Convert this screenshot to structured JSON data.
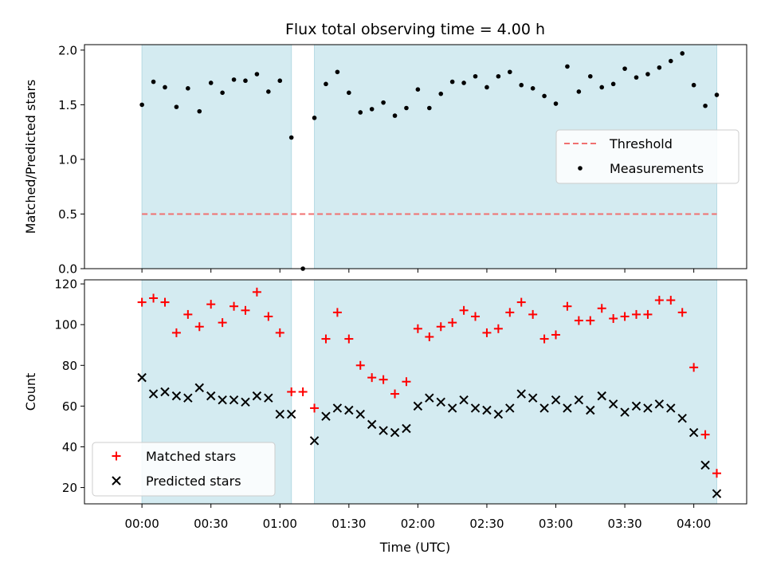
{
  "chart_data": {
    "type": "scatter",
    "title": "Flux total observing time = 4.00 h",
    "xlabel": "Time (UTC)",
    "x_unit": "minutes after 00:00 UTC",
    "xlim": [
      -25,
      263
    ],
    "xticks": [
      0,
      30,
      60,
      90,
      120,
      150,
      180,
      210,
      240
    ],
    "xtick_labels": [
      "00:00",
      "00:30",
      "01:00",
      "01:30",
      "02:00",
      "02:30",
      "03:00",
      "03:30",
      "04:00"
    ],
    "shaded_intervals": [
      [
        0,
        65
      ],
      [
        75,
        250
      ]
    ],
    "shade_color": "#d4ebf1",
    "panels": [
      {
        "id": "ratio",
        "ylabel": "Matched/Predicted stars",
        "ylim": [
          0,
          2.05
        ],
        "yticks": [
          0.0,
          0.5,
          1.0,
          1.5,
          2.0
        ],
        "ytick_labels": [
          "0.0",
          "0.5",
          "1.0",
          "1.5",
          "2.0"
        ],
        "legend_position": "center-right",
        "threshold": {
          "name": "Threshold",
          "value": 0.5,
          "color": "#f07070",
          "style": "dashed"
        },
        "series": [
          {
            "name": "Measurements",
            "marker": "dot",
            "color": "#000000",
            "points": [
              [
                0,
                1.5
              ],
              [
                5,
                1.71
              ],
              [
                10,
                1.66
              ],
              [
                15,
                1.48
              ],
              [
                20,
                1.65
              ],
              [
                25,
                1.44
              ],
              [
                30,
                1.7
              ],
              [
                35,
                1.61
              ],
              [
                40,
                1.73
              ],
              [
                45,
                1.72
              ],
              [
                50,
                1.78
              ],
              [
                55,
                1.62
              ],
              [
                60,
                1.72
              ],
              [
                65,
                1.2
              ],
              [
                70,
                0.0
              ],
              [
                75,
                1.38
              ],
              [
                80,
                1.69
              ],
              [
                85,
                1.8
              ],
              [
                90,
                1.61
              ],
              [
                95,
                1.43
              ],
              [
                100,
                1.46
              ],
              [
                105,
                1.52
              ],
              [
                110,
                1.4
              ],
              [
                115,
                1.47
              ],
              [
                120,
                1.64
              ],
              [
                125,
                1.47
              ],
              [
                130,
                1.6
              ],
              [
                135,
                1.71
              ],
              [
                140,
                1.7
              ],
              [
                145,
                1.76
              ],
              [
                150,
                1.66
              ],
              [
                155,
                1.76
              ],
              [
                160,
                1.8
              ],
              [
                165,
                1.68
              ],
              [
                170,
                1.65
              ],
              [
                175,
                1.58
              ],
              [
                180,
                1.51
              ],
              [
                185,
                1.85
              ],
              [
                190,
                1.62
              ],
              [
                195,
                1.76
              ],
              [
                200,
                1.66
              ],
              [
                205,
                1.69
              ],
              [
                210,
                1.83
              ],
              [
                215,
                1.75
              ],
              [
                220,
                1.78
              ],
              [
                225,
                1.84
              ],
              [
                230,
                1.9
              ],
              [
                235,
                1.97
              ],
              [
                240,
                1.68
              ],
              [
                245,
                1.49
              ],
              [
                250,
                1.59
              ]
            ]
          }
        ]
      },
      {
        "id": "counts",
        "ylabel": "Count",
        "ylim": [
          12,
          122
        ],
        "yticks": [
          20,
          40,
          60,
          80,
          100,
          120
        ],
        "ytick_labels": [
          "20",
          "40",
          "60",
          "80",
          "100",
          "120"
        ],
        "legend_position": "lower-left",
        "series": [
          {
            "name": "Matched stars",
            "marker": "plus",
            "color": "#ff0000",
            "points": [
              [
                0,
                111
              ],
              [
                5,
                113
              ],
              [
                10,
                111
              ],
              [
                15,
                96
              ],
              [
                20,
                105
              ],
              [
                25,
                99
              ],
              [
                30,
                110
              ],
              [
                35,
                101
              ],
              [
                40,
                109
              ],
              [
                45,
                107
              ],
              [
                50,
                116
              ],
              [
                55,
                104
              ],
              [
                60,
                96
              ],
              [
                65,
                67
              ],
              [
                70,
                67
              ],
              [
                75,
                59
              ],
              [
                80,
                93
              ],
              [
                85,
                106
              ],
              [
                90,
                93
              ],
              [
                95,
                80
              ],
              [
                100,
                74
              ],
              [
                105,
                73
              ],
              [
                110,
                66
              ],
              [
                115,
                72
              ],
              [
                120,
                98
              ],
              [
                125,
                94
              ],
              [
                130,
                99
              ],
              [
                135,
                101
              ],
              [
                140,
                107
              ],
              [
                145,
                104
              ],
              [
                150,
                96
              ],
              [
                155,
                98
              ],
              [
                160,
                106
              ],
              [
                165,
                111
              ],
              [
                170,
                105
              ],
              [
                175,
                93
              ],
              [
                180,
                95
              ],
              [
                185,
                109
              ],
              [
                190,
                102
              ],
              [
                195,
                102
              ],
              [
                200,
                108
              ],
              [
                205,
                103
              ],
              [
                210,
                104
              ],
              [
                215,
                105
              ],
              [
                220,
                105
              ],
              [
                225,
                112
              ],
              [
                230,
                112
              ],
              [
                235,
                106
              ],
              [
                240,
                79
              ],
              [
                245,
                46
              ],
              [
                250,
                27
              ]
            ]
          },
          {
            "name": "Predicted stars",
            "marker": "x",
            "color": "#000000",
            "points": [
              [
                0,
                74
              ],
              [
                5,
                66
              ],
              [
                10,
                67
              ],
              [
                15,
                65
              ],
              [
                20,
                64
              ],
              [
                25,
                69
              ],
              [
                30,
                65
              ],
              [
                35,
                63
              ],
              [
                40,
                63
              ],
              [
                45,
                62
              ],
              [
                50,
                65
              ],
              [
                55,
                64
              ],
              [
                60,
                56
              ],
              [
                65,
                56
              ],
              [
                75,
                43
              ],
              [
                80,
                55
              ],
              [
                85,
                59
              ],
              [
                90,
                58
              ],
              [
                95,
                56
              ],
              [
                100,
                51
              ],
              [
                105,
                48
              ],
              [
                110,
                47
              ],
              [
                115,
                49
              ],
              [
                120,
                60
              ],
              [
                125,
                64
              ],
              [
                130,
                62
              ],
              [
                135,
                59
              ],
              [
                140,
                63
              ],
              [
                145,
                59
              ],
              [
                150,
                58
              ],
              [
                155,
                56
              ],
              [
                160,
                59
              ],
              [
                165,
                66
              ],
              [
                170,
                64
              ],
              [
                175,
                59
              ],
              [
                180,
                63
              ],
              [
                185,
                59
              ],
              [
                190,
                63
              ],
              [
                195,
                58
              ],
              [
                200,
                65
              ],
              [
                205,
                61
              ],
              [
                210,
                57
              ],
              [
                215,
                60
              ],
              [
                220,
                59
              ],
              [
                225,
                61
              ],
              [
                230,
                59
              ],
              [
                235,
                54
              ],
              [
                240,
                47
              ],
              [
                245,
                31
              ],
              [
                250,
                17
              ]
            ]
          }
        ]
      }
    ]
  }
}
